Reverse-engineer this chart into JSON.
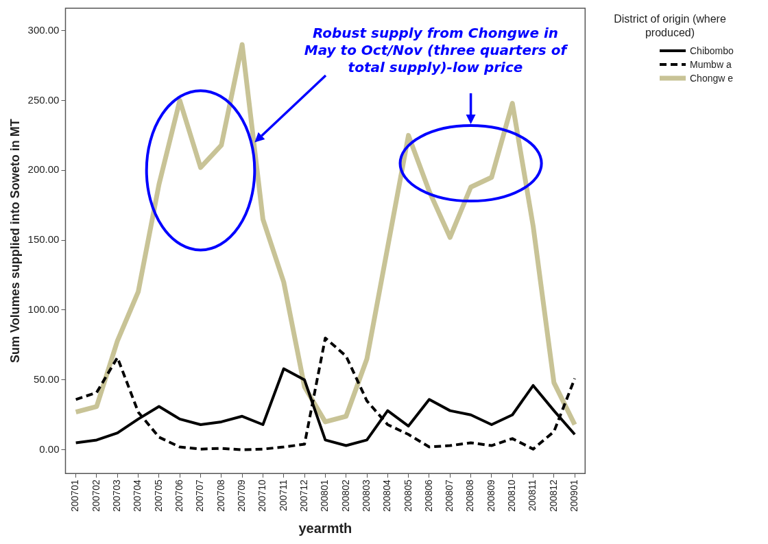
{
  "chart_data": {
    "type": "line",
    "xlabel": "yearmth",
    "ylabel": "Sum Volumes supplied into Soweto in MT",
    "legend_title": "District of origin (where produced)",
    "categories": [
      "200701",
      "200702",
      "200703",
      "200704",
      "200705",
      "200706",
      "200707",
      "200708",
      "200709",
      "200710",
      "200711",
      "200712",
      "200801",
      "200802",
      "200803",
      "200804",
      "200805",
      "200806",
      "200807",
      "200808",
      "200809",
      "200810",
      "200811",
      "200812",
      "200901"
    ],
    "series": [
      {
        "name": "Chibombo",
        "color": "#000000",
        "line_style": "solid",
        "values": [
          5,
          7,
          12,
          22,
          31,
          22,
          18,
          20,
          24,
          18,
          58,
          50,
          7,
          3,
          7,
          28,
          17,
          36,
          28,
          25,
          18,
          25,
          46,
          28,
          11
        ]
      },
      {
        "name": "Mumbw a",
        "color": "#000000",
        "line_style": "dashed",
        "values": [
          36,
          41,
          66,
          27,
          9,
          2,
          0.5,
          1,
          0,
          0.5,
          2,
          4,
          80,
          67,
          35,
          18,
          11,
          2,
          3,
          5,
          3,
          8,
          0.5,
          13,
          51
        ]
      },
      {
        "name": "Chongw e",
        "color": "#c8c396",
        "line_style": "solid",
        "values": [
          27,
          31,
          78,
          113,
          190,
          250,
          202,
          218,
          290,
          165,
          120,
          45,
          20,
          24,
          65,
          145,
          225,
          185,
          152,
          188,
          195,
          248,
          160,
          48,
          18
        ]
      }
    ],
    "ylim": [
      -17,
      316
    ],
    "yticks": [
      {
        "value": 0,
        "label": "0.00"
      },
      {
        "value": 50,
        "label": "50.00"
      },
      {
        "value": 100,
        "label": "100.00"
      },
      {
        "value": 150,
        "label": "150.00"
      },
      {
        "value": 200,
        "label": "200.00"
      },
      {
        "value": 250,
        "label": "250.00"
      },
      {
        "value": 300,
        "label": "300.00"
      }
    ],
    "grid": false,
    "legend": "top right",
    "marker": "none",
    "annotations": [
      "Robust supply from Chongwe in May to Oct/Nov (three quarters of total supply)-low price"
    ]
  }
}
